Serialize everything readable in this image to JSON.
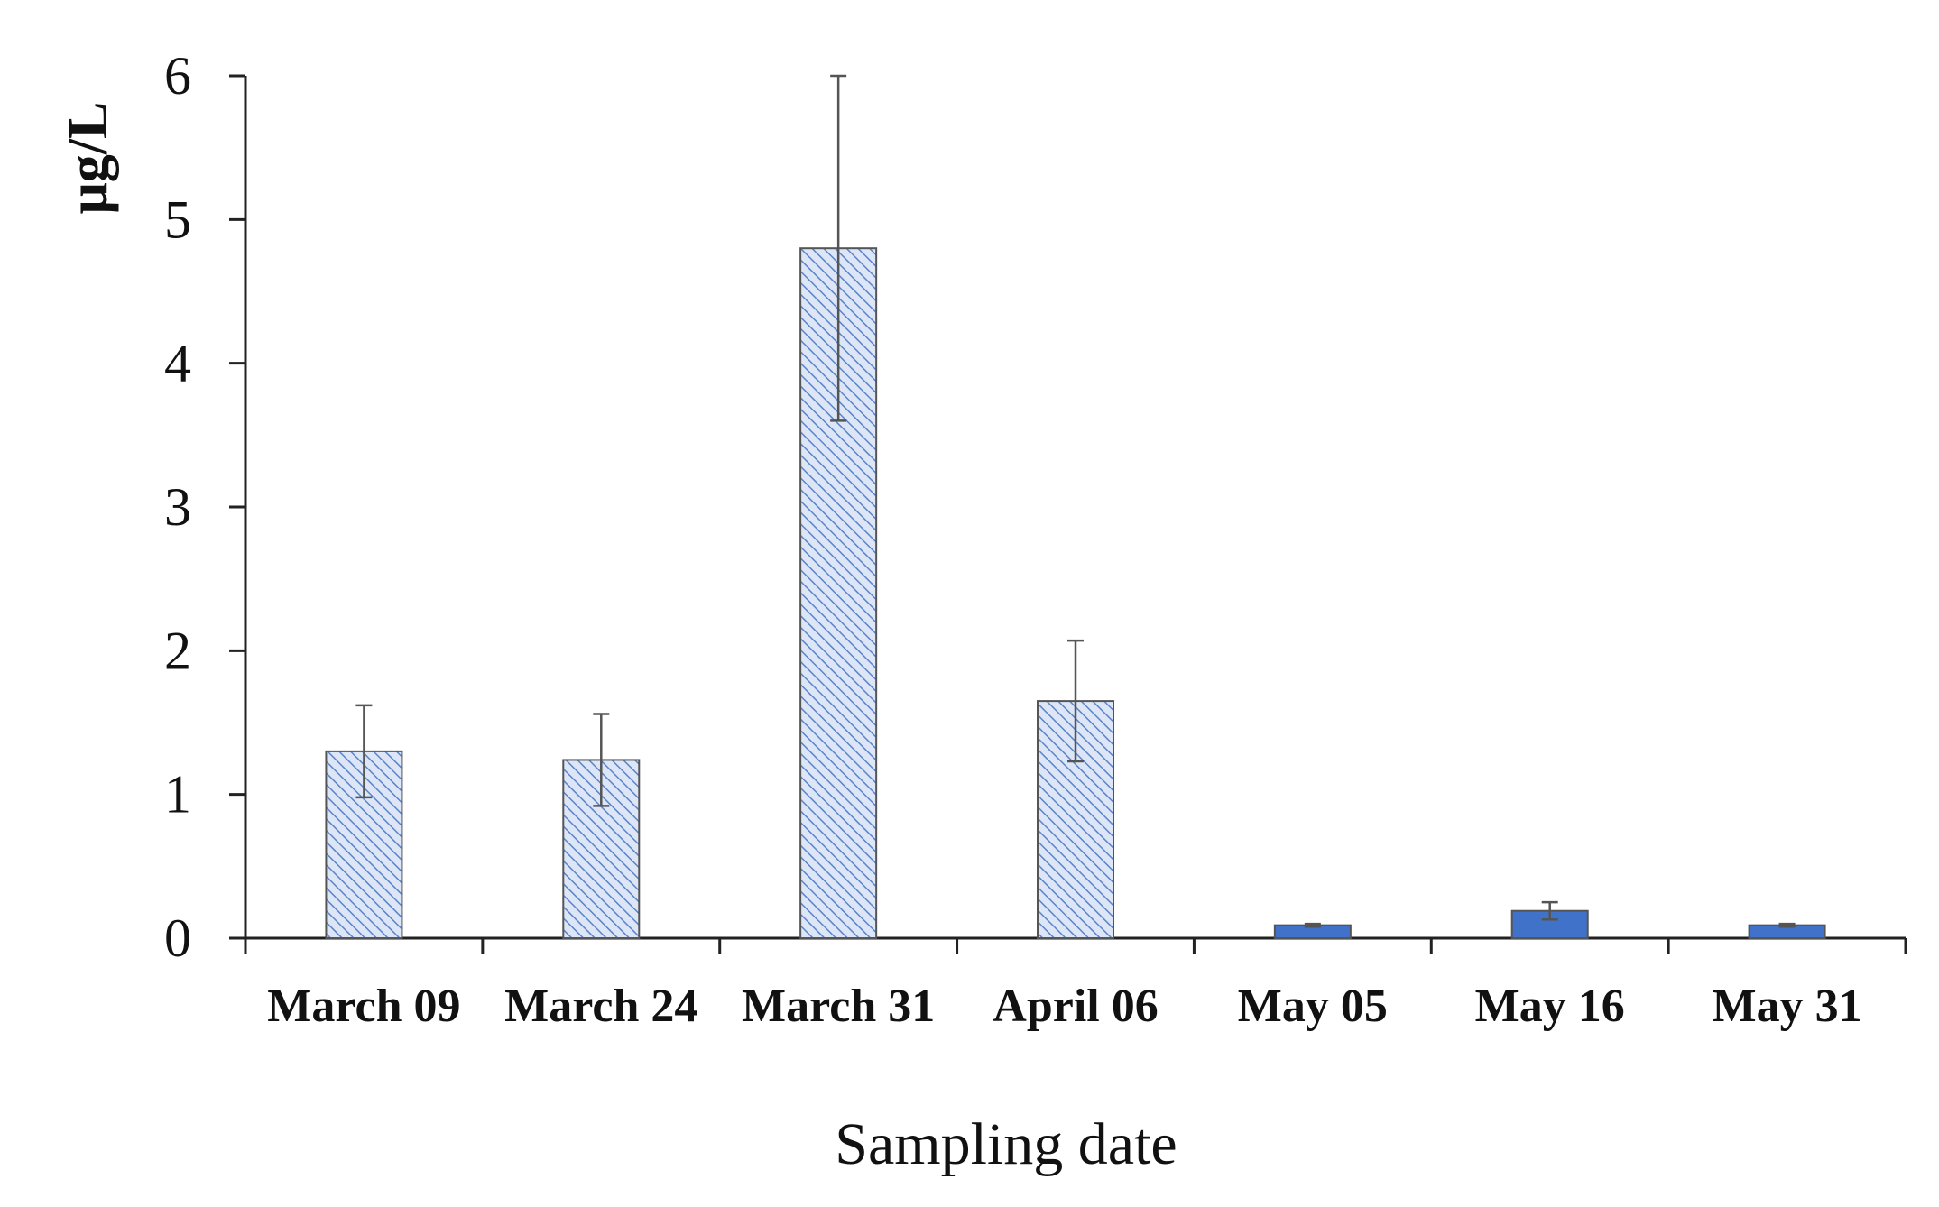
{
  "chart_data": {
    "type": "bar",
    "xlabel": "Sampling date",
    "ylabel": "μg/L",
    "ylim": [
      0,
      6
    ],
    "yticks": [
      0,
      1,
      2,
      3,
      4,
      5,
      6
    ],
    "grid": false,
    "legend": "none",
    "categories": [
      "March 09",
      "March 24",
      "March 31",
      "April 06",
      "May 05",
      "May 16",
      "May 31"
    ],
    "values": [
      1.3,
      1.24,
      4.8,
      1.65,
      0.09,
      0.19,
      0.09
    ],
    "error": [
      0.32,
      0.32,
      1.2,
      0.42,
      0.01,
      0.06,
      0.01
    ],
    "styles": [
      "hatched",
      "hatched",
      "hatched",
      "hatched",
      "solid",
      "solid",
      "solid"
    ],
    "colors": {
      "hatch_fill": "#dce6f7",
      "hatch_line": "#5b83c9",
      "solid_fill": "#3f72c8",
      "bar_edge": "#555555",
      "axis": "#222222",
      "error_bar": "#555555"
    }
  }
}
